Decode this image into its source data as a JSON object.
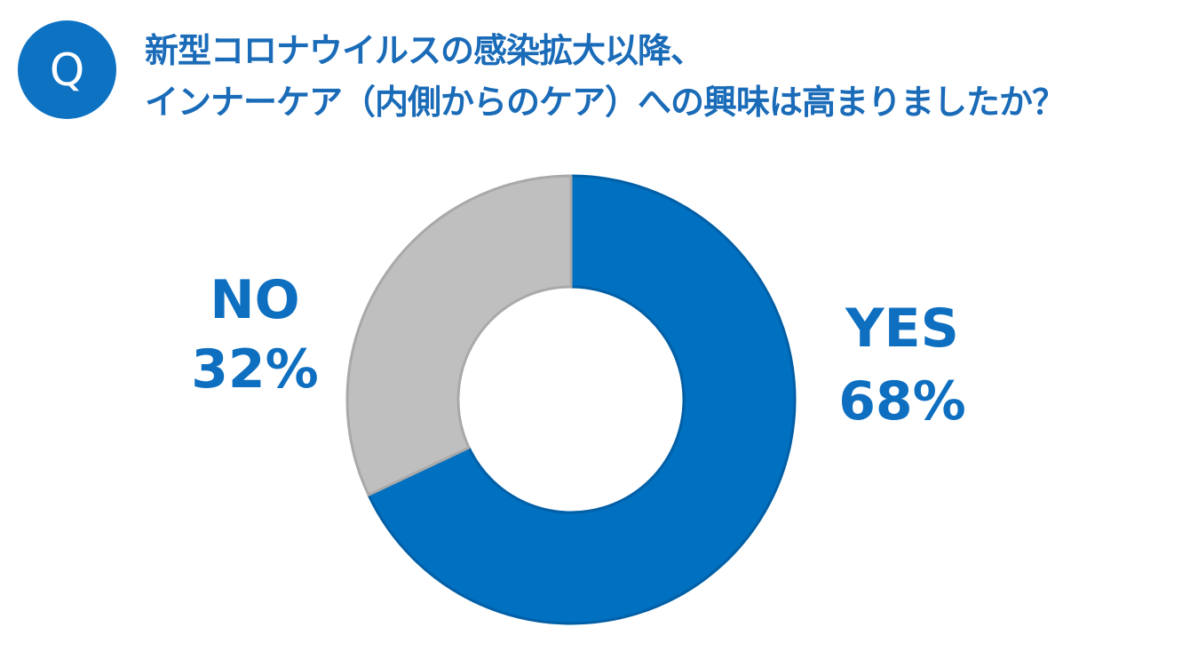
{
  "question": {
    "badge": "Q",
    "line1": "新型コロナウイルスの感染拡大以降、",
    "line2": "インナーケア（内側からのケア）への興味は高まりましたか？"
  },
  "colors": {
    "accent": "#0e72c3",
    "yes": "#0070c0",
    "no": "#bfbfbf",
    "text": "#1a6bb8"
  },
  "chart_data": {
    "type": "pie",
    "variant": "donut",
    "title": "",
    "slices": [
      {
        "label": "YES",
        "value": 68,
        "display": "68%",
        "color": "#0070c0"
      },
      {
        "label": "NO",
        "value": 32,
        "display": "32%",
        "color": "#bfbfbf"
      }
    ],
    "legend": "none"
  }
}
